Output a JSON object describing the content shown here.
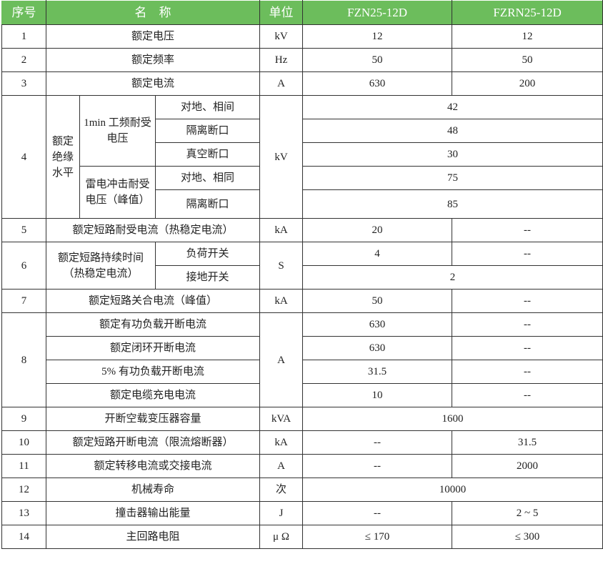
{
  "header": {
    "seq": "序号",
    "name": "名　称",
    "unit": "单位",
    "model_a": "FZN25-12D",
    "model_b": "FZRN25-12D"
  },
  "header_color": "#6cbd5c",
  "rows": [
    {
      "no": "1",
      "name": "额定电压",
      "unit": "kV",
      "a": "12",
      "b": "12"
    },
    {
      "no": "2",
      "name": "额定频率",
      "unit": "Hz",
      "a": "50",
      "b": "50"
    },
    {
      "no": "3",
      "name": "额定电流",
      "unit": "A",
      "a": "630",
      "b": "200"
    },
    {
      "no": "4",
      "group": "额定绝缘水平",
      "unit": "kV",
      "sub1": {
        "label": "1min 工频耐受电压",
        "items": [
          {
            "label": "对地、相间",
            "value": "42"
          },
          {
            "label": "隔离断口",
            "value": "48"
          },
          {
            "label": "真空断口",
            "value": "30"
          }
        ]
      },
      "sub2": {
        "label": "雷电冲击耐受电压（峰值）",
        "items": [
          {
            "label": "对地、相同",
            "value": "75"
          },
          {
            "label": "隔离断口",
            "value": "85"
          }
        ]
      }
    },
    {
      "no": "5",
      "name": "额定短路耐受电流（热稳定电流）",
      "unit": "kA",
      "a": "20",
      "b": "--"
    },
    {
      "no": "6",
      "name": "额定短路持续时间（热稳定电流）",
      "unit": "S",
      "items": [
        {
          "label": "负荷开关",
          "a": "4",
          "b": "--"
        },
        {
          "label": "接地开关",
          "value": "2"
        }
      ]
    },
    {
      "no": "7",
      "name": "额定短路关合电流（峰值）",
      "unit": "kA",
      "a": "50",
      "b": "--"
    },
    {
      "no": "8",
      "unit": "A",
      "items": [
        {
          "name": "额定有功负载开断电流",
          "a": "630",
          "b": "--"
        },
        {
          "name": "额定闭环开断电流",
          "a": "630",
          "b": "--"
        },
        {
          "name": "5% 有功负载开断电流",
          "a": "31.5",
          "b": "--"
        },
        {
          "name": "额定电缆充电电流",
          "a": "10",
          "b": "--"
        }
      ]
    },
    {
      "no": "9",
      "name": "开断空载变压器容量",
      "unit": "kVA",
      "value": "1600"
    },
    {
      "no": "10",
      "name": "额定短路开断电流（限流熔断器）",
      "unit": "kA",
      "a": "--",
      "b": "31.5"
    },
    {
      "no": "11",
      "name": "额定转移电流或交接电流",
      "unit": "A",
      "a": "--",
      "b": "2000"
    },
    {
      "no": "12",
      "name": "机械寿命",
      "unit": "次",
      "value": "10000"
    },
    {
      "no": "13",
      "name": "撞击器输出能量",
      "unit": "J",
      "a": "--",
      "b": "2 ~ 5"
    },
    {
      "no": "14",
      "name": "主回路电阻",
      "unit": "μ Ω",
      "a": "≤ 170",
      "b": "≤ 300"
    }
  ]
}
